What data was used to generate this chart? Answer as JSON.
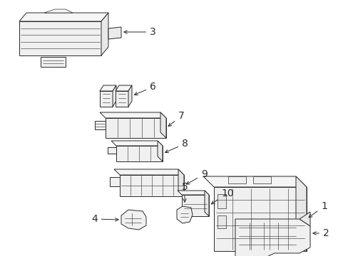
{
  "bg_color": "#ffffff",
  "line_color": "#2a2a2a",
  "lw": 0.7,
  "label_fontsize": 10,
  "figsize": [
    4.89,
    3.6
  ],
  "dpi": 100
}
